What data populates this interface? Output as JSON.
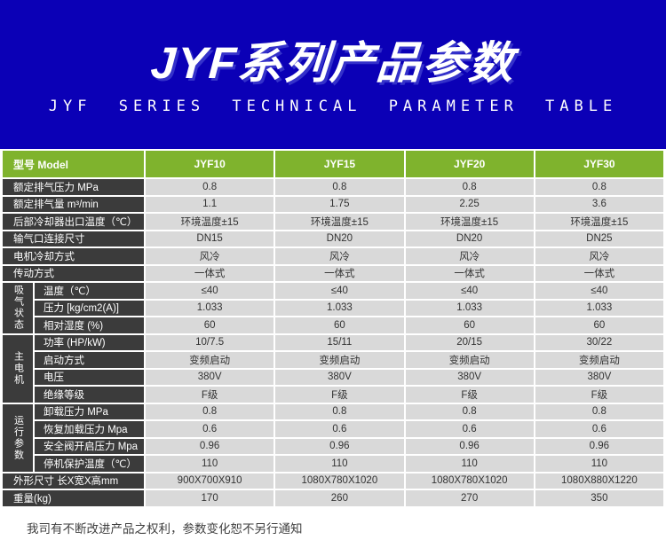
{
  "banner": {
    "title": "JYF系列产品参数",
    "subtitle": "JYF SERIES TECHNICAL PARAMETER TABLE"
  },
  "colors": {
    "banner_bg": "#0b00b6",
    "header_green": "#7fb32d",
    "label_bg": "#3b3b3b",
    "cell_bg": "#d9d9d9"
  },
  "table": {
    "header": {
      "model_label": "型号 Model",
      "columns": [
        "JYF10",
        "JYF15",
        "JYF20",
        "JYF30"
      ]
    },
    "rows_top": [
      {
        "label": "额定排气压力 MPa",
        "values": [
          "0.8",
          "0.8",
          "0.8",
          "0.8"
        ]
      },
      {
        "label": "额定排气量 m³/min",
        "values": [
          "1.1",
          "1.75",
          "2.25",
          "3.6"
        ]
      },
      {
        "label": "后部冷却器出口温度（℃）",
        "values": [
          "环境温度±15",
          "环境温度±15",
          "环境温度±15",
          "环境温度±15"
        ]
      },
      {
        "label": "输气口连接尺寸",
        "values": [
          "DN15",
          "DN20",
          "DN20",
          "DN25"
        ]
      },
      {
        "label": "电机冷却方式",
        "values": [
          "风冷",
          "风冷",
          "风冷",
          "风冷"
        ]
      },
      {
        "label": "传动方式",
        "values": [
          "一体式",
          "一体式",
          "一体式",
          "一体式"
        ]
      }
    ],
    "groups": [
      {
        "group_label": "吸气状态",
        "rows": [
          {
            "label": "温度（℃）",
            "values": [
              "≤40",
              "≤40",
              "≤40",
              "≤40"
            ]
          },
          {
            "label": "压力 [kg/cm2(A)]",
            "values": [
              "1.033",
              "1.033",
              "1.033",
              "1.033"
            ]
          },
          {
            "label": "相对湿度 (%)",
            "values": [
              "60",
              "60",
              "60",
              "60"
            ]
          }
        ]
      },
      {
        "group_label": "主电机",
        "rows": [
          {
            "label": "功率 (HP/kW)",
            "values": [
              "10/7.5",
              "15/11",
              "20/15",
              "30/22"
            ]
          },
          {
            "label": "启动方式",
            "values": [
              "变频启动",
              "变频启动",
              "变频启动",
              "变频启动"
            ]
          },
          {
            "label": "电压",
            "values": [
              "380V",
              "380V",
              "380V",
              "380V"
            ]
          },
          {
            "label": "绝缘等级",
            "values": [
              "F级",
              "F级",
              "F级",
              "F级"
            ]
          }
        ]
      },
      {
        "group_label": "运行参数",
        "rows": [
          {
            "label": "卸载压力 MPa",
            "values": [
              "0.8",
              "0.8",
              "0.8",
              "0.8"
            ]
          },
          {
            "label": "恢复加载压力 Mpa",
            "values": [
              "0.6",
              "0.6",
              "0.6",
              "0.6"
            ]
          },
          {
            "label": "安全阀开启压力 Mpa",
            "values": [
              "0.96",
              "0.96",
              "0.96",
              "0.96"
            ]
          },
          {
            "label": "停机保护温度（℃）",
            "values": [
              "110",
              "110",
              "110",
              "110"
            ]
          }
        ]
      }
    ],
    "rows_bottom": [
      {
        "label": "外形尺寸 长X宽X高mm",
        "values": [
          "900X700X910",
          "1080X780X1020",
          "1080X780X1020",
          "1080X880X1220"
        ]
      },
      {
        "label": "重量(kg)",
        "values": [
          "170",
          "260",
          "270",
          "350"
        ]
      }
    ]
  },
  "footer": {
    "note": "我司有不断改进产品之权利，参数变化恕不另行通知"
  }
}
